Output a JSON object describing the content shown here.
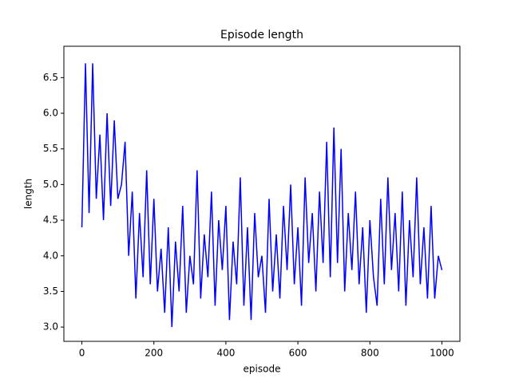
{
  "chart_data": {
    "type": "line",
    "title": "Episode length",
    "xlabel": "episode",
    "ylabel": "length",
    "x": [
      0,
      10,
      20,
      30,
      40,
      50,
      60,
      70,
      80,
      90,
      100,
      110,
      120,
      130,
      140,
      150,
      160,
      170,
      180,
      190,
      200,
      210,
      220,
      230,
      240,
      250,
      260,
      270,
      280,
      290,
      300,
      310,
      320,
      330,
      340,
      350,
      360,
      370,
      380,
      390,
      400,
      410,
      420,
      430,
      440,
      450,
      460,
      470,
      480,
      490,
      500,
      510,
      520,
      530,
      540,
      550,
      560,
      570,
      580,
      590,
      600,
      610,
      620,
      630,
      640,
      650,
      660,
      670,
      680,
      690,
      700,
      710,
      720,
      730,
      740,
      750,
      760,
      770,
      780,
      790,
      800,
      810,
      820,
      830,
      840,
      850,
      860,
      870,
      880,
      890,
      900,
      910,
      920,
      930,
      940,
      950,
      960,
      970,
      980,
      990,
      1000
    ],
    "series": [
      {
        "color": "#0000ff",
        "values": [
          4.4,
          6.7,
          4.6,
          6.7,
          4.8,
          5.7,
          4.5,
          6.0,
          4.7,
          5.9,
          4.8,
          5.0,
          5.6,
          4.0,
          4.9,
          3.4,
          4.6,
          3.7,
          5.2,
          3.6,
          4.8,
          3.5,
          4.1,
          3.2,
          4.4,
          3.0,
          4.2,
          3.5,
          4.7,
          3.2,
          4.0,
          3.6,
          5.2,
          3.4,
          4.3,
          3.7,
          4.9,
          3.3,
          4.5,
          3.8,
          4.7,
          3.1,
          4.2,
          3.6,
          5.1,
          3.3,
          4.4,
          3.1,
          4.6,
          3.7,
          4.0,
          3.2,
          4.8,
          3.5,
          4.3,
          3.4,
          4.7,
          3.8,
          5.0,
          3.6,
          4.4,
          3.3,
          5.1,
          3.9,
          4.6,
          3.5,
          4.9,
          3.9,
          5.6,
          3.7,
          5.8,
          3.9,
          5.5,
          3.5,
          4.6,
          3.8,
          4.9,
          3.6,
          4.4,
          3.2,
          4.5,
          3.7,
          3.3,
          4.8,
          3.6,
          5.1,
          3.8,
          4.6,
          3.5,
          4.9,
          3.3,
          4.5,
          3.7,
          5.1,
          3.6,
          4.4,
          3.4,
          4.7,
          3.4,
          4.0,
          3.8
        ]
      }
    ],
    "xlim": [
      -50,
      1050
    ],
    "ylim": [
      2.8,
      6.94
    ],
    "xticks": [
      0,
      200,
      400,
      600,
      800,
      1000
    ],
    "yticks": [
      {
        "value": 3,
        "label": "3.0"
      },
      3.5,
      {
        "value": 4,
        "label": "4.0"
      },
      4.5,
      {
        "value": 5,
        "label": "5.0"
      },
      5.5,
      {
        "value": 6,
        "label": "6.0"
      },
      6.5
    ]
  }
}
